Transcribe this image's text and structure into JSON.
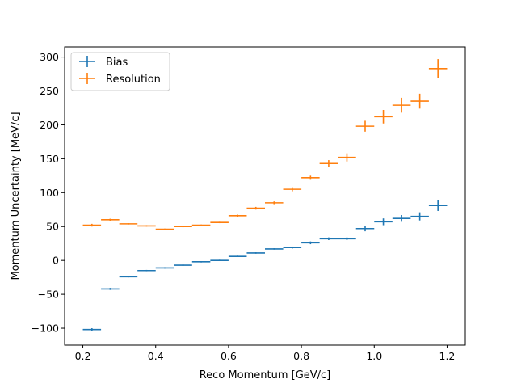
{
  "chart_data": {
    "type": "scatter",
    "xlabel": "Reco Momentum [GeV/c]",
    "ylabel": "Momentum Uncertainty [MeV/c]",
    "xlim": [
      0.15,
      1.25
    ],
    "ylim": [
      -125,
      315
    ],
    "xticks": [
      0.2,
      0.4,
      0.6,
      0.8,
      1.0,
      1.2
    ],
    "xtick_labels": [
      "0.2",
      "0.4",
      "0.6",
      "0.8",
      "1.0",
      "1.2"
    ],
    "yticks": [
      -100,
      -50,
      0,
      50,
      100,
      150,
      200,
      250,
      300
    ],
    "ytick_labels": [
      "−100",
      "−50",
      "0",
      "50",
      "100",
      "150",
      "200",
      "250",
      "300"
    ],
    "grid": false,
    "legend": "top-left",
    "x": [
      0.225,
      0.275,
      0.325,
      0.375,
      0.425,
      0.475,
      0.525,
      0.575,
      0.625,
      0.675,
      0.725,
      0.775,
      0.825,
      0.875,
      0.925,
      0.975,
      1.025,
      1.075,
      1.125,
      1.175
    ],
    "x_err": 0.025,
    "series": [
      {
        "name": "Bias",
        "color": "#1f77b4",
        "values": [
          -102,
          -42,
          -24,
          -15,
          -11,
          -7,
          -2,
          0,
          6,
          11,
          17,
          19,
          26,
          32,
          32,
          47,
          57,
          62,
          65,
          81
        ],
        "y_err": [
          2,
          1.5,
          1,
          1,
          1,
          1,
          1,
          1,
          1,
          1,
          1,
          1.5,
          2,
          2,
          2,
          4,
          5,
          5,
          6,
          8
        ]
      },
      {
        "name": "Resolution",
        "color": "#ff7f0e",
        "values": [
          52,
          60,
          54,
          51,
          46,
          50,
          52,
          56,
          66,
          77,
          85,
          105,
          122,
          143,
          152,
          198,
          212,
          229,
          235,
          283
        ],
        "y_err": [
          2,
          1.5,
          1,
          1,
          1,
          1,
          1,
          1,
          1.5,
          2,
          2,
          3,
          3,
          5,
          6,
          8,
          10,
          11,
          11,
          14
        ]
      }
    ]
  }
}
